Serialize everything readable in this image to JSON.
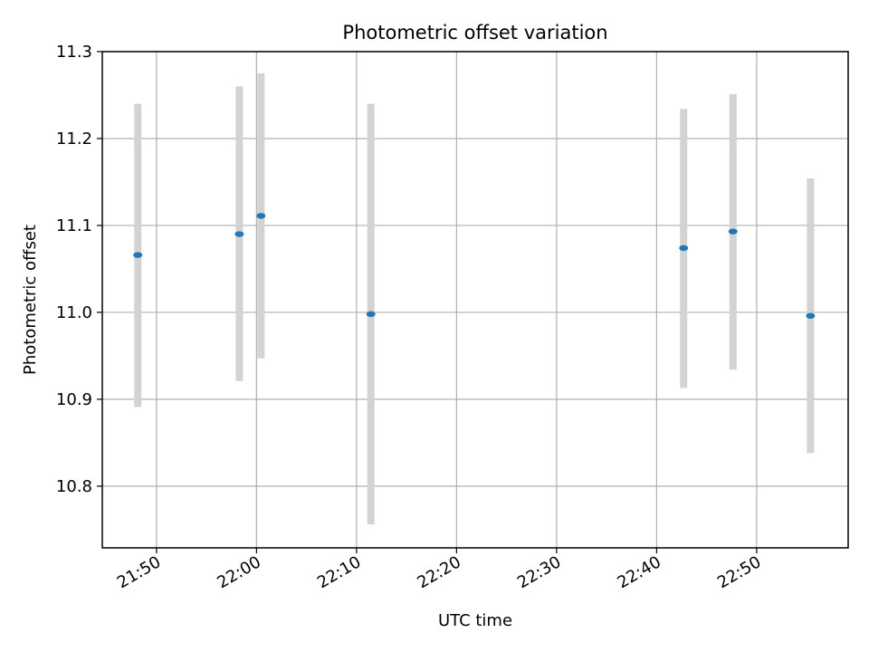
{
  "chart_data": {
    "type": "scatter",
    "title": "Photometric offset variation",
    "xlabel": "UTC time",
    "ylabel": "Photometric offset",
    "x_unit": "time (HH:MM)",
    "xlim": [
      "21:44:35",
      "22:59:09"
    ],
    "ylim": [
      10.729,
      11.3
    ],
    "x_ticks": [
      "21:50",
      "22:00",
      "22:10",
      "22:20",
      "22:30",
      "22:40",
      "22:50"
    ],
    "y_ticks": [
      10.8,
      10.9,
      11.0,
      11.1,
      11.2,
      11.3
    ],
    "y_tick_labels": [
      "10.8",
      "10.9",
      "11.0",
      "11.1",
      "11.2",
      "11.3"
    ],
    "grid": true,
    "series": [
      {
        "marker_color": "#1f77b4",
        "errorbar_color": "#d3d3d3",
        "points": [
          {
            "time": "21:48:08",
            "y": 11.066,
            "y_low": 10.891,
            "y_high": 11.24
          },
          {
            "time": "21:58:17",
            "y": 11.09,
            "y_low": 10.921,
            "y_high": 11.26
          },
          {
            "time": "22:00:27",
            "y": 11.111,
            "y_low": 10.947,
            "y_high": 11.275
          },
          {
            "time": "22:11:26",
            "y": 10.998,
            "y_low": 10.756,
            "y_high": 11.24
          },
          {
            "time": "22:42:42",
            "y": 11.074,
            "y_low": 10.913,
            "y_high": 11.234
          },
          {
            "time": "22:47:38",
            "y": 11.093,
            "y_low": 10.934,
            "y_high": 11.251
          },
          {
            "time": "22:55:23",
            "y": 10.996,
            "y_low": 10.838,
            "y_high": 11.154
          }
        ]
      }
    ]
  }
}
